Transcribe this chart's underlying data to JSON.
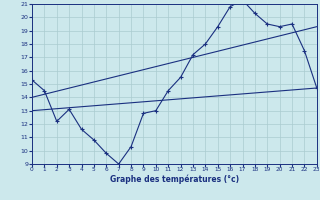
{
  "title": "Graphe des températures (°c)",
  "bg_color": "#cce8ec",
  "line_color": "#1a3080",
  "grid_color": "#aaccd0",
  "x_min": 0,
  "x_max": 23,
  "y_min": 9,
  "y_max": 21,
  "series1_x": [
    0,
    1,
    2,
    3,
    4,
    5,
    6,
    7,
    8,
    9,
    10,
    11,
    12,
    13,
    14,
    15,
    16,
    17,
    18,
    19,
    20,
    21,
    22,
    23
  ],
  "series1_y": [
    15.3,
    14.5,
    12.2,
    13.1,
    11.6,
    10.8,
    9.8,
    9.0,
    10.3,
    12.8,
    13.0,
    14.5,
    15.5,
    17.2,
    18.0,
    19.3,
    20.8,
    21.3,
    20.3,
    19.5,
    19.3,
    19.5,
    17.5,
    14.7
  ],
  "series2_x": [
    0,
    23
  ],
  "series2_y": [
    14.0,
    19.3
  ],
  "series3_x": [
    0,
    23
  ],
  "series3_y": [
    13.0,
    14.7
  ]
}
